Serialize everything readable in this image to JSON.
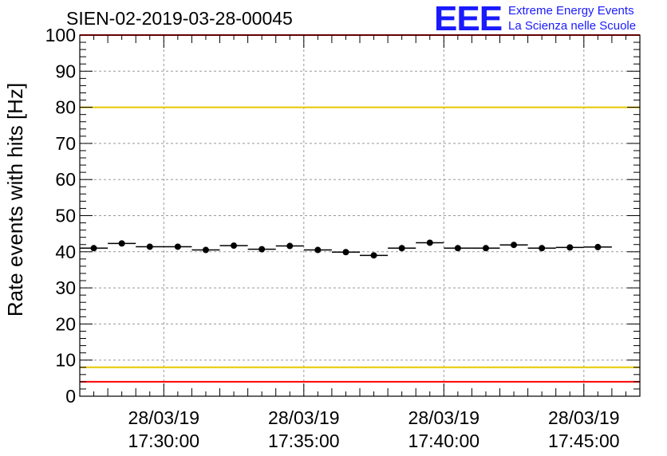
{
  "title": "SIEN-02-2019-03-28-00045",
  "logo": {
    "mark": "EEE",
    "line1": "Extreme Energy Events",
    "line2": "La Scienza nelle Scuole"
  },
  "chart_data": {
    "type": "scatter",
    "title": "SIEN-02-2019-03-28-00045",
    "xlabel": "",
    "ylabel": "Rate events with hits [Hz]",
    "ylim": [
      0,
      100
    ],
    "yticks": [
      0,
      10,
      20,
      30,
      40,
      50,
      60,
      70,
      80,
      90,
      100
    ],
    "xlim": [
      "2019-03-28 17:27:00",
      "2019-03-28 17:47:00"
    ],
    "xticks": [
      {
        "time": "2019-03-28 17:30:00",
        "label": [
          "28/03/19",
          "17:30:00"
        ]
      },
      {
        "time": "2019-03-28 17:35:00",
        "label": [
          "28/03/19",
          "17:35:00"
        ]
      },
      {
        "time": "2019-03-28 17:40:00",
        "label": [
          "28/03/19",
          "17:40:00"
        ]
      },
      {
        "time": "2019-03-28 17:45:00",
        "label": [
          "28/03/19",
          "17:45:00"
        ]
      }
    ],
    "grid": true,
    "bin_width_s": 60,
    "points": [
      {
        "x": "2019-03-28 17:27:30",
        "y": 41.0
      },
      {
        "x": "2019-03-28 17:28:30",
        "y": 42.3
      },
      {
        "x": "2019-03-28 17:29:30",
        "y": 41.4
      },
      {
        "x": "2019-03-28 17:30:30",
        "y": 41.4
      },
      {
        "x": "2019-03-28 17:31:30",
        "y": 40.5
      },
      {
        "x": "2019-03-28 17:32:30",
        "y": 41.7
      },
      {
        "x": "2019-03-28 17:33:30",
        "y": 40.7
      },
      {
        "x": "2019-03-28 17:34:30",
        "y": 41.6
      },
      {
        "x": "2019-03-28 17:35:30",
        "y": 40.5
      },
      {
        "x": "2019-03-28 17:36:30",
        "y": 39.9
      },
      {
        "x": "2019-03-28 17:37:30",
        "y": 39.0
      },
      {
        "x": "2019-03-28 17:38:30",
        "y": 41.0
      },
      {
        "x": "2019-03-28 17:39:30",
        "y": 42.5
      },
      {
        "x": "2019-03-28 17:40:30",
        "y": 41.0
      },
      {
        "x": "2019-03-28 17:41:30",
        "y": 41.0
      },
      {
        "x": "2019-03-28 17:42:30",
        "y": 41.9
      },
      {
        "x": "2019-03-28 17:43:30",
        "y": 41.0
      },
      {
        "x": "2019-03-28 17:44:30",
        "y": 41.2
      },
      {
        "x": "2019-03-28 17:45:30",
        "y": 41.3
      }
    ],
    "reference_lines": [
      {
        "y": 100,
        "color": "#ff0000"
      },
      {
        "y": 80,
        "color": "#e6c800"
      },
      {
        "y": 8,
        "color": "#e6c800"
      },
      {
        "y": 4,
        "color": "#ff0000"
      }
    ],
    "colors": {
      "points": "#000000",
      "grid": "#999999"
    }
  }
}
